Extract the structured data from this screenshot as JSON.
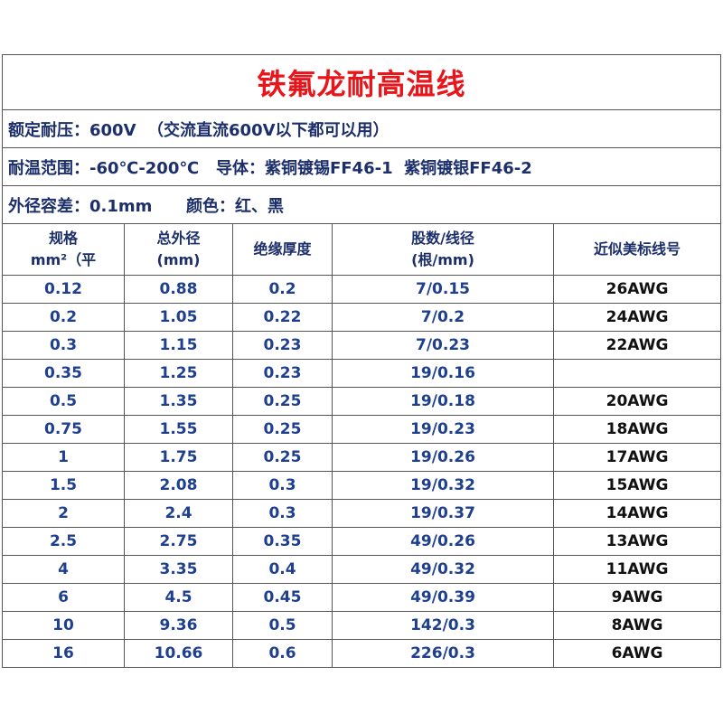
{
  "header": {
    "title": "铁氟龙耐高温线"
  },
  "info": [
    "额定耐压：600V  （交流直流600V以下都可以用）",
    "耐温范围：-60℃-200℃   导体：紫铜镀锡FF46-1  紫铜镀银FF46-2",
    "外径容差：0.1mm      颜色：红、黑"
  ],
  "table": {
    "columns": [
      "规格\nmm²（平",
      "总外径\n(mm)",
      "绝缘厚度",
      "股数/线径\n(根/mm)",
      "近似美标线号"
    ],
    "rows": [
      [
        "0.12",
        "0.88",
        "0.2",
        "7/0.15",
        "26AWG"
      ],
      [
        "0.2",
        "1.05",
        "0.22",
        "7/0.2",
        "24AWG"
      ],
      [
        "0.3",
        "1.15",
        "0.23",
        "7/0.23",
        "22AWG"
      ],
      [
        "0.35",
        "1.25",
        "0.23",
        "19/0.16",
        null
      ],
      [
        "0.5",
        "1.35",
        "0.25",
        "19/0.18",
        "20AWG"
      ],
      [
        "0.75",
        "1.55",
        "0.25",
        "19/0.23",
        "18AWG"
      ],
      [
        "1",
        "1.75",
        "0.25",
        "19/0.26",
        "17AWG"
      ],
      [
        "1.5",
        "2.08",
        "0.3",
        "19/0.32",
        "15AWG"
      ],
      [
        "2",
        "2.4",
        "0.3",
        "19/0.37",
        "14AWG"
      ],
      [
        "2.5",
        "2.75",
        "0.35",
        "49/0.26",
        "13AWG"
      ],
      [
        "4",
        "3.35",
        "0.4",
        "49/0.32",
        "11AWG"
      ],
      [
        "6",
        "4.5",
        "0.45",
        "49/0.39",
        "9AWG"
      ],
      [
        "10",
        "9.36",
        "0.5",
        "142/0.3",
        "8AWG"
      ],
      [
        "16",
        "10.66",
        "0.6",
        "226/0.3",
        "6AWG"
      ]
    ]
  }
}
